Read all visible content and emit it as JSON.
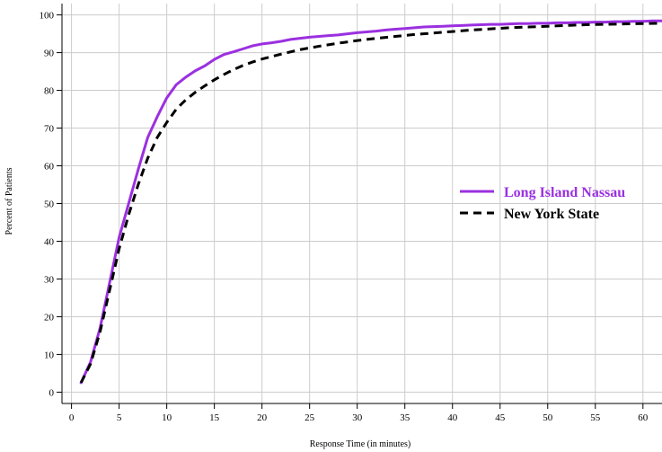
{
  "chart_data": {
    "type": "line",
    "title": "",
    "xlabel": "Response Time (in minutes)",
    "ylabel": "Percent of Patients",
    "xlim": [
      -1,
      62
    ],
    "ylim": [
      -3,
      103
    ],
    "xticks": [
      0,
      5,
      10,
      15,
      20,
      25,
      30,
      35,
      40,
      45,
      50,
      55,
      60
    ],
    "yticks": [
      0,
      10,
      20,
      30,
      40,
      50,
      60,
      70,
      80,
      90,
      100
    ],
    "grid": true,
    "legend_position": "center-right",
    "series": [
      {
        "name": "Long Island Nassau",
        "color": "#9b30e0",
        "line_style": "solid",
        "x": [
          1,
          2,
          3,
          4,
          5,
          6,
          7,
          8,
          9,
          10,
          11,
          12,
          13,
          14,
          15,
          16,
          17,
          18,
          19,
          20,
          21,
          22,
          23,
          24,
          25,
          26,
          27,
          28,
          29,
          30,
          31,
          32,
          33,
          34,
          35,
          36,
          37,
          38,
          39,
          40,
          41,
          42,
          43,
          44,
          45,
          46,
          47,
          48,
          49,
          50,
          51,
          52,
          53,
          54,
          55,
          56,
          57,
          58,
          59,
          60,
          61,
          62
        ],
        "y": [
          2.5,
          8,
          17,
          29,
          41,
          50,
          59,
          67.5,
          73,
          78,
          81.5,
          83.5,
          85.2,
          86.5,
          88.2,
          89.5,
          90.2,
          91,
          91.8,
          92.3,
          92.6,
          93,
          93.5,
          93.8,
          94.1,
          94.3,
          94.5,
          94.7,
          95,
          95.3,
          95.5,
          95.7,
          96,
          96.2,
          96.4,
          96.6,
          96.8,
          96.9,
          97,
          97.1,
          97.2,
          97.3,
          97.4,
          97.5,
          97.5,
          97.6,
          97.7,
          97.7,
          97.8,
          97.8,
          97.9,
          97.9,
          98,
          98,
          98.1,
          98.1,
          98.2,
          98.2,
          98.3,
          98.3,
          98.4,
          98.4
        ]
      },
      {
        "name": "New York State",
        "color": "#000000",
        "line_style": "dashed",
        "x": [
          1,
          2,
          3,
          4,
          5,
          6,
          7,
          8,
          9,
          10,
          11,
          12,
          13,
          14,
          15,
          16,
          17,
          18,
          19,
          20,
          22,
          24,
          26,
          28,
          30,
          32,
          34,
          36,
          38,
          40,
          42,
          44,
          46,
          48,
          50,
          52,
          54,
          56,
          58,
          60,
          62
        ],
        "y": [
          2.5,
          7.5,
          16,
          27,
          38,
          47,
          55,
          62,
          67.5,
          71.5,
          75,
          77.5,
          79.5,
          81.2,
          82.8,
          84.2,
          85.5,
          86.6,
          87.5,
          88.3,
          89.6,
          90.8,
          91.7,
          92.5,
          93.2,
          93.8,
          94.3,
          94.8,
          95.2,
          95.6,
          96,
          96.3,
          96.6,
          96.8,
          97,
          97.2,
          97.4,
          97.5,
          97.6,
          97.7,
          97.8
        ]
      }
    ]
  }
}
